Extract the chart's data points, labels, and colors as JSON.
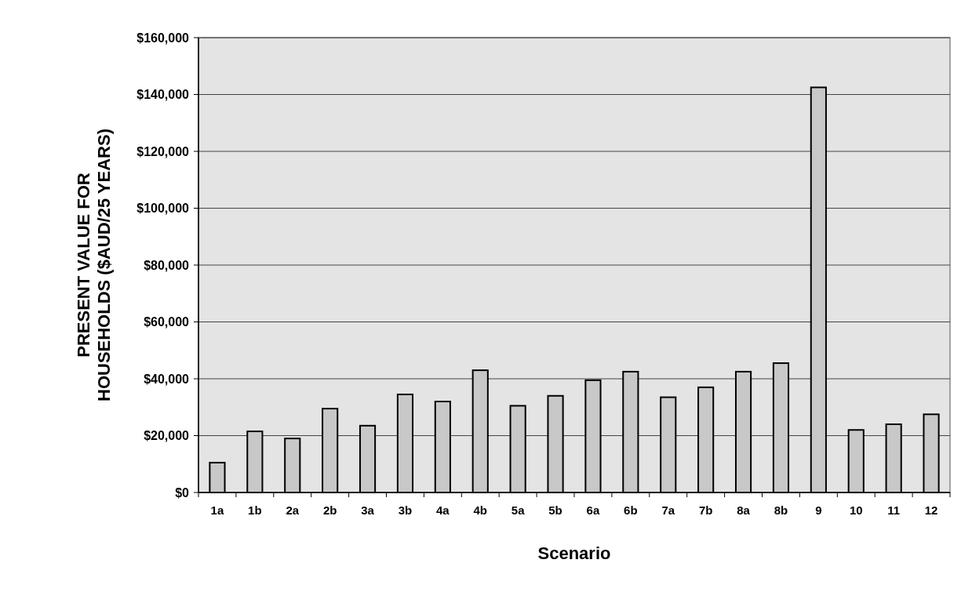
{
  "chart_data": {
    "type": "bar",
    "xlabel": "Scenario",
    "ylabel": "PRESENT VALUE FOR HOUSEHOLDS ($AUD/25 YEARS)",
    "categories": [
      "1a",
      "1b",
      "2a",
      "2b",
      "3a",
      "3b",
      "4a",
      "4b",
      "5a",
      "5b",
      "6a",
      "6b",
      "7a",
      "7b",
      "8a",
      "8b",
      "9",
      "10",
      "11",
      "12"
    ],
    "values": [
      10500,
      21500,
      19000,
      29500,
      23500,
      34500,
      32000,
      43000,
      30500,
      34000,
      39500,
      42500,
      33500,
      37000,
      42500,
      45500,
      142500,
      22000,
      24000,
      27500
    ],
    "color": "#c8c8c8",
    "ylim": [
      0,
      160000
    ],
    "yticks": [
      {
        "value": 0,
        "label": "$0"
      },
      {
        "value": 20000,
        "label": "$20,000"
      },
      {
        "value": 40000,
        "label": "$40,000"
      },
      {
        "value": 60000,
        "label": "$60,000"
      },
      {
        "value": 80000,
        "label": "$80,000"
      },
      {
        "value": 100000,
        "label": "$100,000"
      },
      {
        "value": 120000,
        "label": "$120,000"
      },
      {
        "value": 140000,
        "label": "$140,000"
      },
      {
        "value": 160000,
        "label": "$160,000"
      }
    ],
    "grid": "y"
  }
}
